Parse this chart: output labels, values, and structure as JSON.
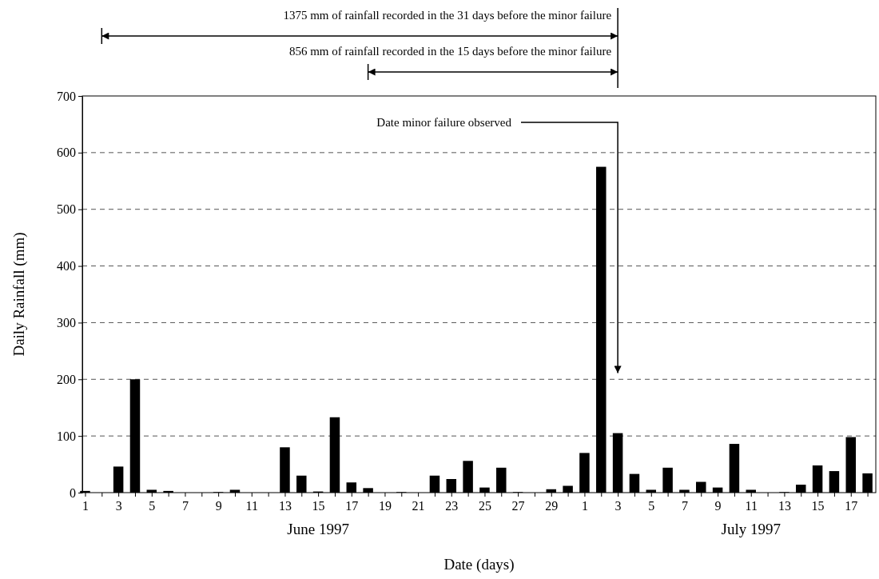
{
  "chart_data": {
    "type": "bar",
    "xlabel": "Date (days)",
    "ylabel": "Daily Rainfall (mm)",
    "x": [
      "1997-06-01",
      "1997-06-02",
      "1997-06-03",
      "1997-06-04",
      "1997-06-05",
      "1997-06-06",
      "1997-06-07",
      "1997-06-08",
      "1997-06-09",
      "1997-06-10",
      "1997-06-11",
      "1997-06-12",
      "1997-06-13",
      "1997-06-14",
      "1997-06-15",
      "1997-06-16",
      "1997-06-17",
      "1997-06-18",
      "1997-06-19",
      "1997-06-20",
      "1997-06-21",
      "1997-06-22",
      "1997-06-23",
      "1997-06-24",
      "1997-06-25",
      "1997-06-26",
      "1997-06-27",
      "1997-06-28",
      "1997-06-29",
      "1997-06-30",
      "1997-07-01",
      "1997-07-02",
      "1997-07-03",
      "1997-07-04",
      "1997-07-05",
      "1997-07-06",
      "1997-07-07",
      "1997-07-08",
      "1997-07-09",
      "1997-07-10",
      "1997-07-11",
      "1997-07-12",
      "1997-07-13",
      "1997-07-14",
      "1997-07-15",
      "1997-07-16",
      "1997-07-17",
      "1997-07-18"
    ],
    "values": [
      3,
      0,
      46,
      200,
      5,
      3,
      0,
      0,
      1,
      5,
      0,
      0,
      80,
      30,
      2,
      133,
      18,
      8,
      0,
      1,
      0,
      30,
      24,
      56,
      9,
      44,
      1,
      0,
      6,
      12,
      70,
      575,
      105,
      33,
      5,
      44,
      5,
      19,
      9,
      86,
      5,
      0,
      1,
      14,
      48,
      38,
      98,
      34
    ],
    "color": "#000000",
    "xlim": [
      "1997-05-31T20:00",
      "1997-07-18T12:00"
    ],
    "xticks": [
      {
        "value": "1997-06-01",
        "label": "1"
      },
      {
        "value": "1997-06-02",
        "label": null
      },
      {
        "value": "1997-06-03",
        "label": "3"
      },
      {
        "value": "1997-06-04",
        "label": null
      },
      {
        "value": "1997-06-05",
        "label": "5"
      },
      {
        "value": "1997-06-06",
        "label": null
      },
      {
        "value": "1997-06-07",
        "label": "7"
      },
      {
        "value": "1997-06-08",
        "label": null
      },
      {
        "value": "1997-06-09",
        "label": "9"
      },
      {
        "value": "1997-06-10",
        "label": null
      },
      {
        "value": "1997-06-11",
        "label": "11"
      },
      {
        "value": "1997-06-12",
        "label": null
      },
      {
        "value": "1997-06-13",
        "label": "13"
      },
      {
        "value": "1997-06-14",
        "label": null
      },
      {
        "value": "1997-06-15",
        "label": "15"
      },
      {
        "value": "1997-06-16",
        "label": null
      },
      {
        "value": "1997-06-17",
        "label": "17"
      },
      {
        "value": "1997-06-18",
        "label": null
      },
      {
        "value": "1997-06-19",
        "label": "19"
      },
      {
        "value": "1997-06-20",
        "label": null
      },
      {
        "value": "1997-06-21",
        "label": "21"
      },
      {
        "value": "1997-06-22",
        "label": null
      },
      {
        "value": "1997-06-23",
        "label": "23"
      },
      {
        "value": "1997-06-24",
        "label": null
      },
      {
        "value": "1997-06-25",
        "label": "25"
      },
      {
        "value": "1997-06-26",
        "label": null
      },
      {
        "value": "1997-06-27",
        "label": "27"
      },
      {
        "value": "1997-06-28",
        "label": null
      },
      {
        "value": "1997-06-29",
        "label": "29"
      },
      {
        "value": "1997-06-30",
        "label": null
      },
      {
        "value": "1997-07-01",
        "label": "1"
      },
      {
        "value": "1997-07-02",
        "label": null
      },
      {
        "value": "1997-07-03",
        "label": "3"
      },
      {
        "value": "1997-07-04",
        "label": null
      },
      {
        "value": "1997-07-05",
        "label": "5"
      },
      {
        "value": "1997-07-06",
        "label": null
      },
      {
        "value": "1997-07-07",
        "label": "7"
      },
      {
        "value": "1997-07-08",
        "label": null
      },
      {
        "value": "1997-07-09",
        "label": "9"
      },
      {
        "value": "1997-07-10",
        "label": null
      },
      {
        "value": "1997-07-11",
        "label": "11"
      },
      {
        "value": "1997-07-12",
        "label": null
      },
      {
        "value": "1997-07-13",
        "label": "13"
      },
      {
        "value": "1997-07-14",
        "label": null
      },
      {
        "value": "1997-07-15",
        "label": "15"
      },
      {
        "value": "1997-07-16",
        "label": null
      },
      {
        "value": "1997-07-17",
        "label": "17"
      },
      {
        "value": "1997-07-18",
        "label": null
      }
    ],
    "ylim": [
      0,
      700
    ],
    "yticks": [
      0,
      100,
      200,
      300,
      400,
      500,
      600,
      700
    ],
    "grid": "y",
    "annotations": [
      "1375 mm of rainfall recorded in the 31 days before the minor failure",
      "856 mm of rainfall recorded in the 15 days before the minor failure",
      "Date minor failure observed",
      "June 1997",
      "July 1997"
    ]
  }
}
